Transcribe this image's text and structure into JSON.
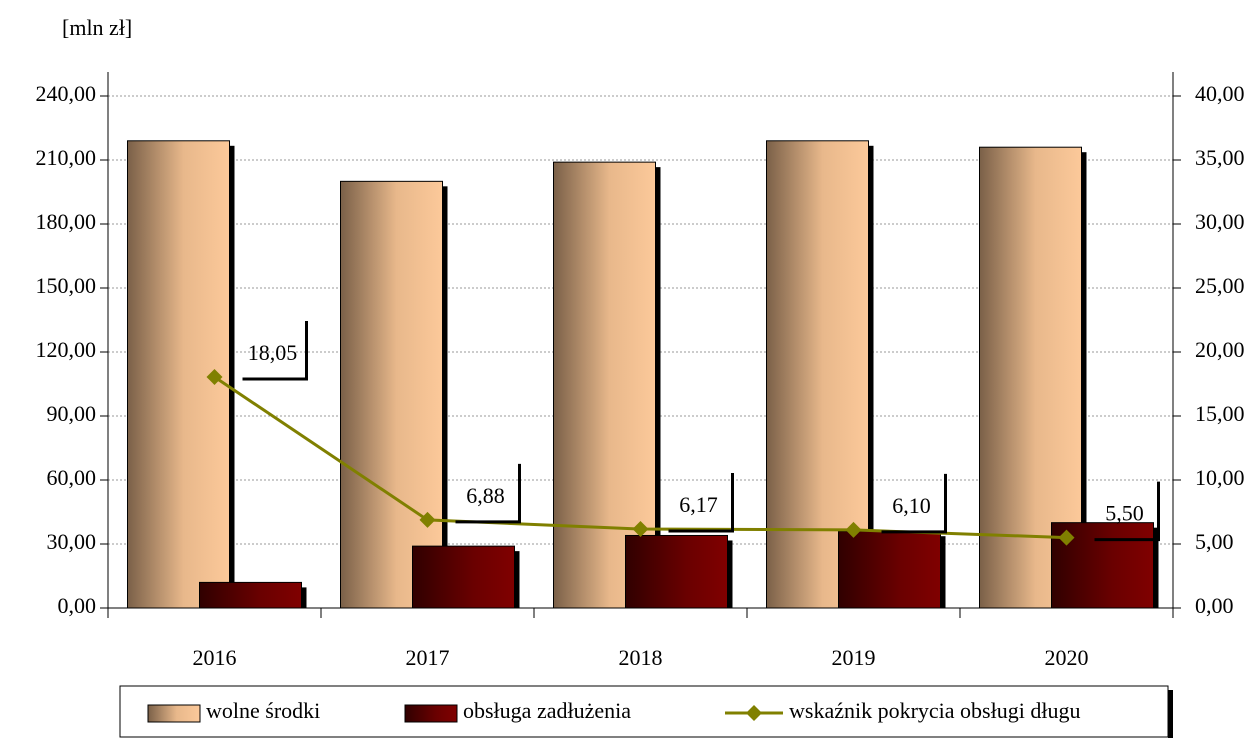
{
  "chart_data": {
    "type": "bar",
    "y_axis_label": "[mln zł]",
    "categories": [
      "2016",
      "2017",
      "2018",
      "2019",
      "2020"
    ],
    "series": [
      {
        "name": "wolne środki",
        "color": "#fcc99a",
        "values": [
          219,
          200,
          209,
          219,
          216
        ]
      },
      {
        "name": "obsługa zadłużenia",
        "color": "#800000",
        "values": [
          12,
          29,
          34,
          36,
          40
        ]
      },
      {
        "name": "wskaźnik pokrycia obsługi długu",
        "color": "#808000",
        "type": "line",
        "axis": "y2",
        "values": [
          18.05,
          6.88,
          6.17,
          6.1,
          5.5
        ],
        "value_labels": [
          "18,05",
          "6,88",
          "6,17",
          "6,10",
          "5,50"
        ]
      }
    ],
    "ylim": [
      0,
      240
    ],
    "yticks": [
      {
        "value": 0,
        "label": "0,00"
      },
      {
        "value": 30,
        "label": "30,00"
      },
      {
        "value": 60,
        "label": "60,00"
      },
      {
        "value": 90,
        "label": "90,00"
      },
      {
        "value": 120,
        "label": "120,00"
      },
      {
        "value": 150,
        "label": "150,00"
      },
      {
        "value": 180,
        "label": "180,00"
      },
      {
        "value": 210,
        "label": "210,00"
      },
      {
        "value": 240,
        "label": "240,00"
      }
    ],
    "y2lim": [
      0,
      40
    ],
    "y2ticks": [
      {
        "value": 0,
        "label": "0,00"
      },
      {
        "value": 5,
        "label": "5,00"
      },
      {
        "value": 10,
        "label": "10,00"
      },
      {
        "value": 15,
        "label": "15,00"
      },
      {
        "value": 20,
        "label": "20,00"
      },
      {
        "value": 25,
        "label": "25,00"
      },
      {
        "value": 30,
        "label": "30,00"
      },
      {
        "value": 35,
        "label": "35,00"
      },
      {
        "value": 40,
        "label": "40,00"
      }
    ],
    "grid": true,
    "legend": "bottom"
  }
}
